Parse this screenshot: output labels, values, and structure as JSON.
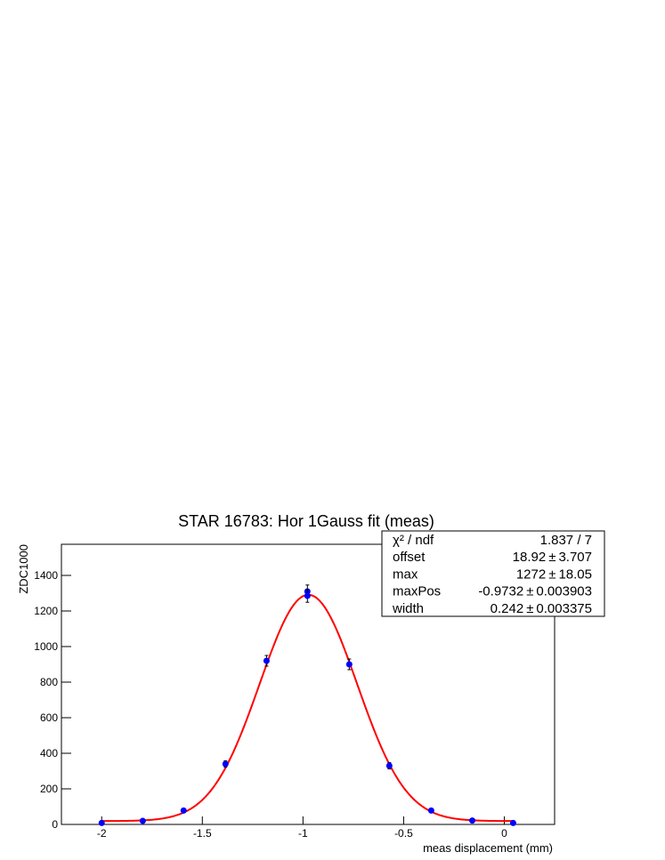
{
  "chart_data": {
    "type": "scatter",
    "title": "STAR 16783: Hor 1Gauss fit (meas)",
    "x_label": "meas displacement (mm)",
    "y_label": "ZDC1000",
    "x": [
      -2.0,
      -1.796,
      -1.593,
      -1.385,
      -1.181,
      -0.978,
      -0.978,
      -0.77,
      -0.571,
      -0.363,
      -0.159,
      0.044
    ],
    "values": [
      8,
      20,
      78,
      340,
      920,
      1310,
      1285,
      900,
      330,
      78,
      22,
      8
    ],
    "errors": [
      5,
      6,
      10,
      18,
      30,
      36,
      36,
      30,
      18,
      10,
      6,
      5
    ],
    "color": "#0000ff",
    "fit_color": "#ff0000",
    "xlim": [
      -2.2,
      0.25
    ],
    "ylim": [
      0,
      1575
    ],
    "xticks": [
      -2,
      -1.5,
      -1,
      -0.5,
      0
    ],
    "yticks": [
      0,
      200,
      400,
      600,
      800,
      1000,
      1200,
      1400
    ],
    "stats": {
      "chi2": {
        "name": "χ² / ndf",
        "value": "1.837 / 7"
      },
      "pm": "±",
      "params": [
        {
          "name": "offset",
          "value": 18.92,
          "error": 3.707
        },
        {
          "name": "max",
          "value": 1272,
          "error": 18.05
        },
        {
          "name": "maxPos",
          "value": -0.9732,
          "error": 0.003903
        },
        {
          "name": "width",
          "value": 0.242,
          "error": 0.003375
        }
      ]
    }
  }
}
